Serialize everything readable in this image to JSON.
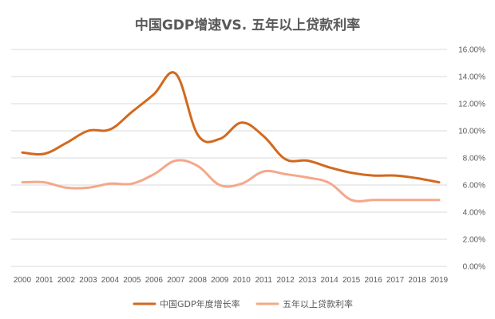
{
  "chart_data": {
    "type": "line",
    "title": "中国GDP增速VS. 五年以上贷款利率",
    "xlabel": "",
    "ylabel": "",
    "categories": [
      "2000",
      "2001",
      "2002",
      "2003",
      "2004",
      "2005",
      "2006",
      "2007",
      "2008",
      "2009",
      "2010",
      "2011",
      "2012",
      "2013",
      "2014",
      "2015",
      "2016",
      "2017",
      "2018",
      "2019"
    ],
    "y_ticks": [
      "0.00%",
      "2.00%",
      "4.00%",
      "6.00%",
      "8.00%",
      "10.00%",
      "12.00%",
      "14.00%",
      "16.00%"
    ],
    "ylim": [
      0,
      16
    ],
    "y_axis_position": "right",
    "grid": true,
    "smooth": true,
    "legend_position": "bottom",
    "series": [
      {
        "name": "中国GDP年度增长率",
        "color": "#D2691E",
        "values": [
          8.4,
          8.3,
          9.1,
          10.0,
          10.1,
          11.4,
          12.7,
          14.2,
          9.7,
          9.4,
          10.6,
          9.6,
          7.9,
          7.8,
          7.3,
          6.9,
          6.7,
          6.7,
          6.5,
          6.2
        ]
      },
      {
        "name": "五年以上贷款利率",
        "color": "#F4A88A",
        "values": [
          6.2,
          6.2,
          5.8,
          5.8,
          6.1,
          6.1,
          6.8,
          7.8,
          7.4,
          6.0,
          6.1,
          7.0,
          6.8,
          6.55,
          6.15,
          4.9,
          4.9,
          4.9,
          4.9,
          4.9
        ]
      }
    ]
  }
}
